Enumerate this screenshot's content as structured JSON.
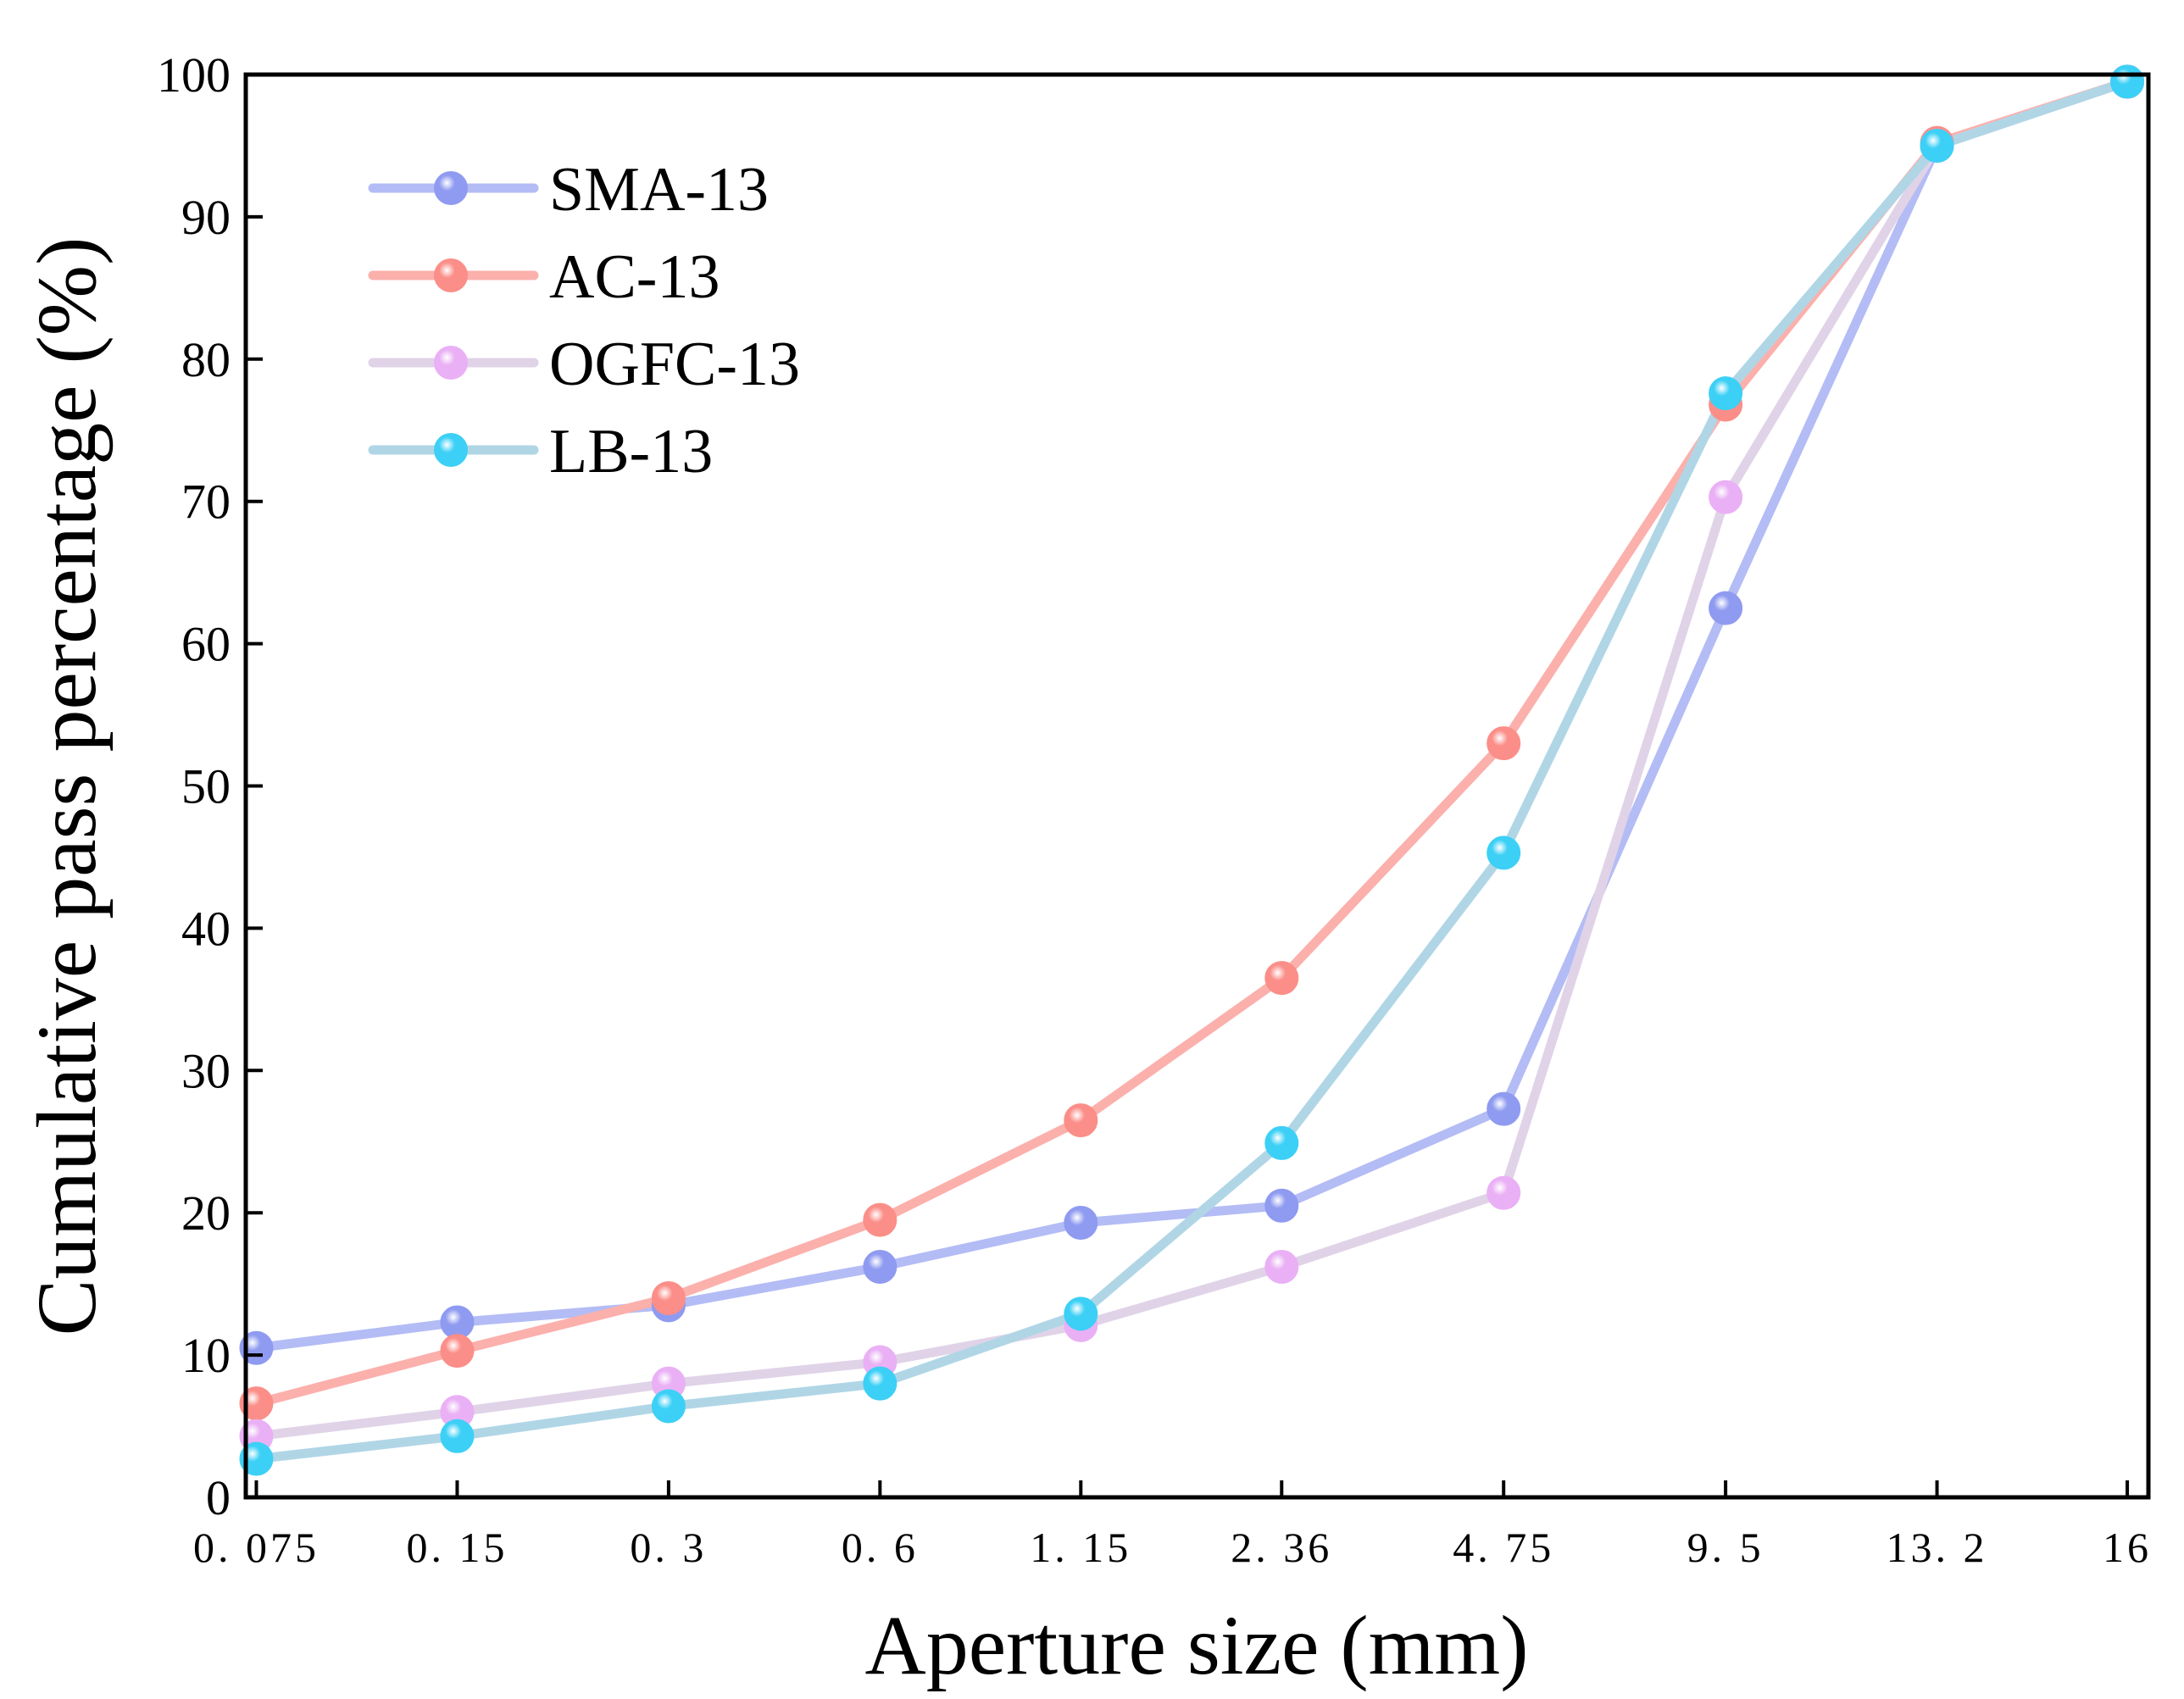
{
  "chart_data": {
    "type": "line",
    "title": "",
    "xlabel": "Aperture size (mm)",
    "ylabel": "Cumulative pass percentage (%)",
    "categories": [
      "0.075",
      "0.15",
      "0.3",
      "0.6",
      "1.15",
      "2.36",
      "4.75",
      "9.5",
      "13.2",
      "16"
    ],
    "x_tick_labels": [
      "0. 075",
      "0. 15",
      "0. 3",
      "0. 6",
      "1. 15",
      "2. 36",
      "4. 75",
      "9. 5",
      "13. 2",
      "16"
    ],
    "x_positions": [
      0.05,
      1.0,
      2.0,
      3.0,
      3.95,
      4.9,
      5.95,
      7.0,
      8.0,
      8.9
    ],
    "xlim": [
      0,
      9
    ],
    "ylim": [
      0,
      100
    ],
    "y_ticks": [
      0,
      10,
      20,
      30,
      40,
      50,
      60,
      70,
      80,
      90,
      100
    ],
    "grid": false,
    "legend_position": "top-left",
    "series": [
      {
        "name": "SMA-13",
        "line_color": "#b3bcf5",
        "marker_color": "#8f9bf0",
        "values": [
          10.5,
          12.3,
          13.5,
          16.2,
          19.3,
          20.5,
          27.3,
          62.5,
          95,
          99.5
        ]
      },
      {
        "name": "AC-13",
        "line_color": "#fbb0ac",
        "marker_color": "#fb8e88",
        "values": [
          6.6,
          10.3,
          14,
          19.5,
          26.5,
          36.5,
          53,
          76.8,
          95.2,
          99.5
        ]
      },
      {
        "name": "OGFC-13",
        "line_color": "#e0d3e8",
        "marker_color": "#eab0f5",
        "values": [
          4.3,
          6,
          8,
          9.5,
          12.1,
          16.2,
          21.4,
          70.3,
          95,
          99.5
        ]
      },
      {
        "name": "LB-13",
        "line_color": "#b0d6e6",
        "marker_color": "#3dd0f6",
        "values": [
          2.7,
          4.3,
          6.4,
          8,
          12.9,
          24.9,
          45.3,
          77.6,
          95,
          99.5
        ]
      }
    ]
  }
}
